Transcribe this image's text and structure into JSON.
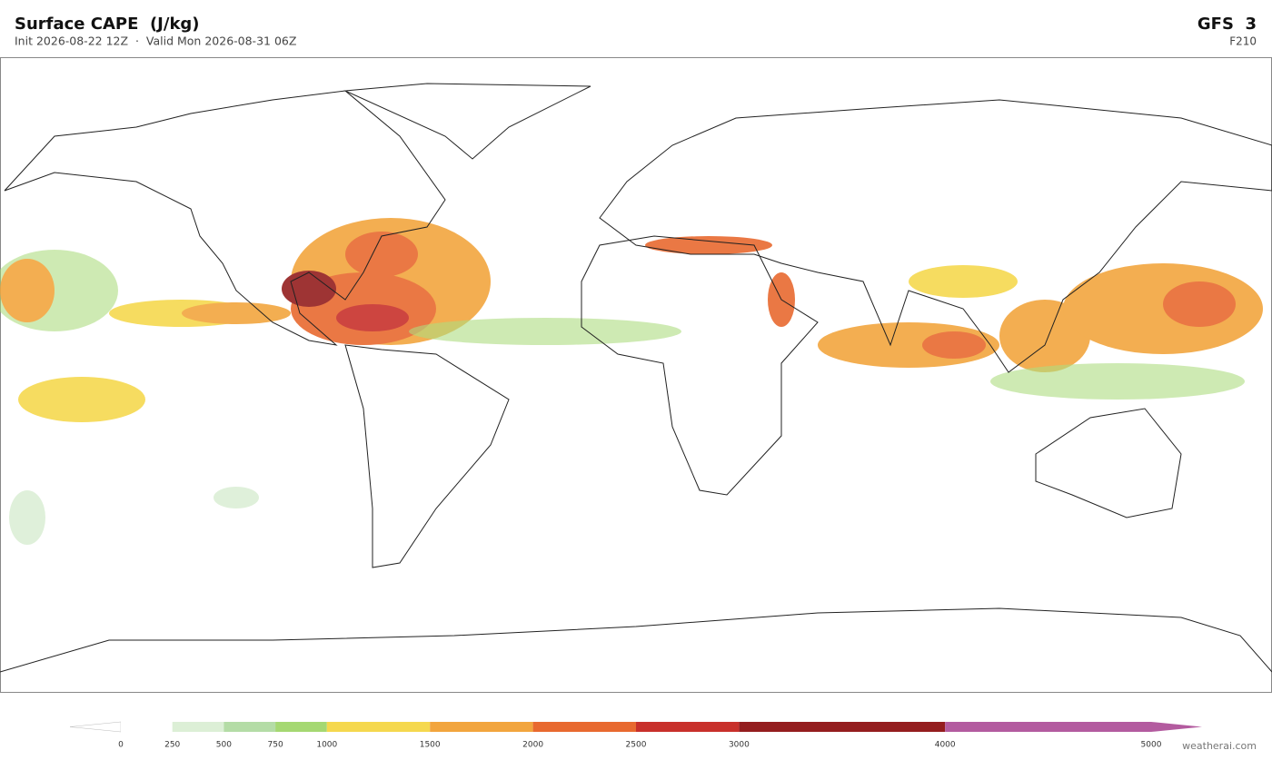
{
  "header": {
    "title": "Surface CAPE  (J/kg)",
    "subtitle": "Init 2026-08-22 12Z  ·  Valid Mon 2026-08-31 06Z",
    "model": "GFS  3",
    "forecast_hour": "F210"
  },
  "colorbar": {
    "levels": [
      0,
      250,
      500,
      750,
      1000,
      1500,
      2000,
      2500,
      3000,
      4000,
      5000
    ],
    "colors": [
      "#ffffff",
      "#ffffff",
      "#dcefd6",
      "#b4dca6",
      "#a5d872",
      "#f5d84e",
      "#f2a53e",
      "#e8692f",
      "#c8302b",
      "#941d1e",
      "#b35b9f",
      "#b35b9f"
    ]
  },
  "footer": {
    "credit": "weatherai.com"
  }
}
